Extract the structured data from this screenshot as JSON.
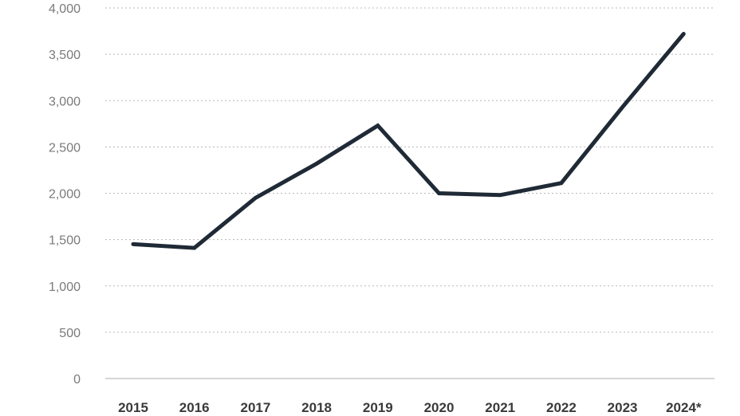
{
  "chart_data": {
    "type": "line",
    "title": "",
    "xlabel": "",
    "ylabel": "",
    "categories": [
      "2015",
      "2016",
      "2017",
      "2018",
      "2019",
      "2020",
      "2021",
      "2022",
      "2023",
      "2024*"
    ],
    "series": [
      {
        "values": [
          1450,
          1410,
          1950,
          2320,
          2730,
          2000,
          1980,
          2110,
          2930,
          3720
        ]
      }
    ],
    "ylim": [
      0,
      4000
    ],
    "yticks": [
      0,
      500,
      1000,
      1500,
      2000,
      2500,
      3000,
      3500,
      4000
    ],
    "ytick_labels": [
      "0",
      "500",
      "1,000",
      "1,500",
      "2,000",
      "2,500",
      "3,000",
      "3,500",
      "4,000"
    ],
    "grid": "horizontal dotted",
    "legend": "none",
    "colors": {
      "line": "#1f2a36",
      "grid": "#b8b8b8",
      "axis": "#c8c8c8"
    }
  }
}
